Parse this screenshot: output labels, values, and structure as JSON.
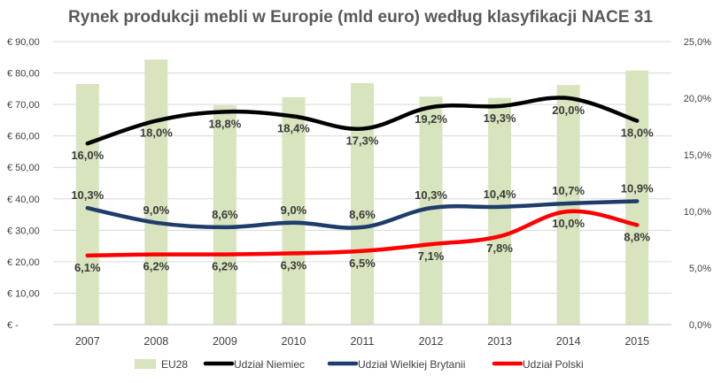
{
  "chart_data": {
    "type": "bar+line",
    "title": "Rynek produkcji mebli w Europie (mld euro) według klasyfikacji NACE 31",
    "categories": [
      "2007",
      "2008",
      "2009",
      "2010",
      "2011",
      "2012",
      "2013",
      "2014",
      "2015"
    ],
    "bar_series": {
      "name": "EU28",
      "axis": "left",
      "color": "#d7e4bd",
      "values": [
        76.5,
        84.3,
        69.7,
        72.3,
        76.8,
        72.5,
        72.1,
        76.2,
        80.8
      ]
    },
    "line_series": [
      {
        "name": "Udział Niemiec",
        "axis": "right",
        "color": "#000000",
        "values": [
          16.0,
          18.0,
          18.8,
          18.4,
          17.3,
          19.2,
          19.3,
          20.0,
          18.0
        ],
        "labels": [
          "16,0%",
          "18,0%",
          "18,8%",
          "18,4%",
          "17,3%",
          "19,2%",
          "19,3%",
          "20,0%",
          "18,0%"
        ],
        "label_position": [
          "below",
          "below",
          "below",
          "below",
          "below",
          "below",
          "below",
          "below",
          "below"
        ]
      },
      {
        "name": "Udział Wielkiej Brytanii",
        "axis": "right",
        "color": "#1f3d6b",
        "values": [
          10.3,
          9.0,
          8.6,
          9.0,
          8.6,
          10.3,
          10.4,
          10.7,
          10.9
        ],
        "labels": [
          "10,3%",
          "9,0%",
          "8,6%",
          "9,0%",
          "8,6%",
          "10,3%",
          "10,4%",
          "10,7%",
          "10,9%"
        ],
        "label_position": [
          "above",
          "above",
          "above",
          "above",
          "above",
          "above",
          "above",
          "above",
          "above"
        ]
      },
      {
        "name": "Udział Polski",
        "axis": "right",
        "color": "#ff0000",
        "values": [
          6.1,
          6.2,
          6.2,
          6.3,
          6.5,
          7.1,
          7.8,
          10.0,
          8.8
        ],
        "labels": [
          "6,1%",
          "6,2%",
          "6,2%",
          "6,3%",
          "6,5%",
          "7,1%",
          "7,8%",
          "10,0%",
          "8,8%"
        ],
        "label_position": [
          "below",
          "below",
          "below",
          "below",
          "below",
          "below",
          "below",
          "below",
          "below"
        ]
      }
    ],
    "left_axis": {
      "ylim": [
        0,
        90
      ],
      "ticks": [
        0,
        10,
        20,
        30,
        40,
        50,
        60,
        70,
        80,
        90
      ],
      "tick_labels": [
        "€ -",
        "€ 10,00",
        "€ 20,00",
        "€ 30,00",
        "€ 40,00",
        "€ 50,00",
        "€ 60,00",
        "€ 70,00",
        "€ 80,00",
        "€ 90,00"
      ]
    },
    "right_axis": {
      "ylim": [
        0,
        25
      ],
      "ticks": [
        0,
        5,
        10,
        15,
        20,
        25
      ],
      "tick_labels": [
        "0,0%",
        "5,0%",
        "10,0%",
        "15,0%",
        "20,0%",
        "25,0%"
      ]
    },
    "grid": true,
    "legend_position": "bottom"
  }
}
